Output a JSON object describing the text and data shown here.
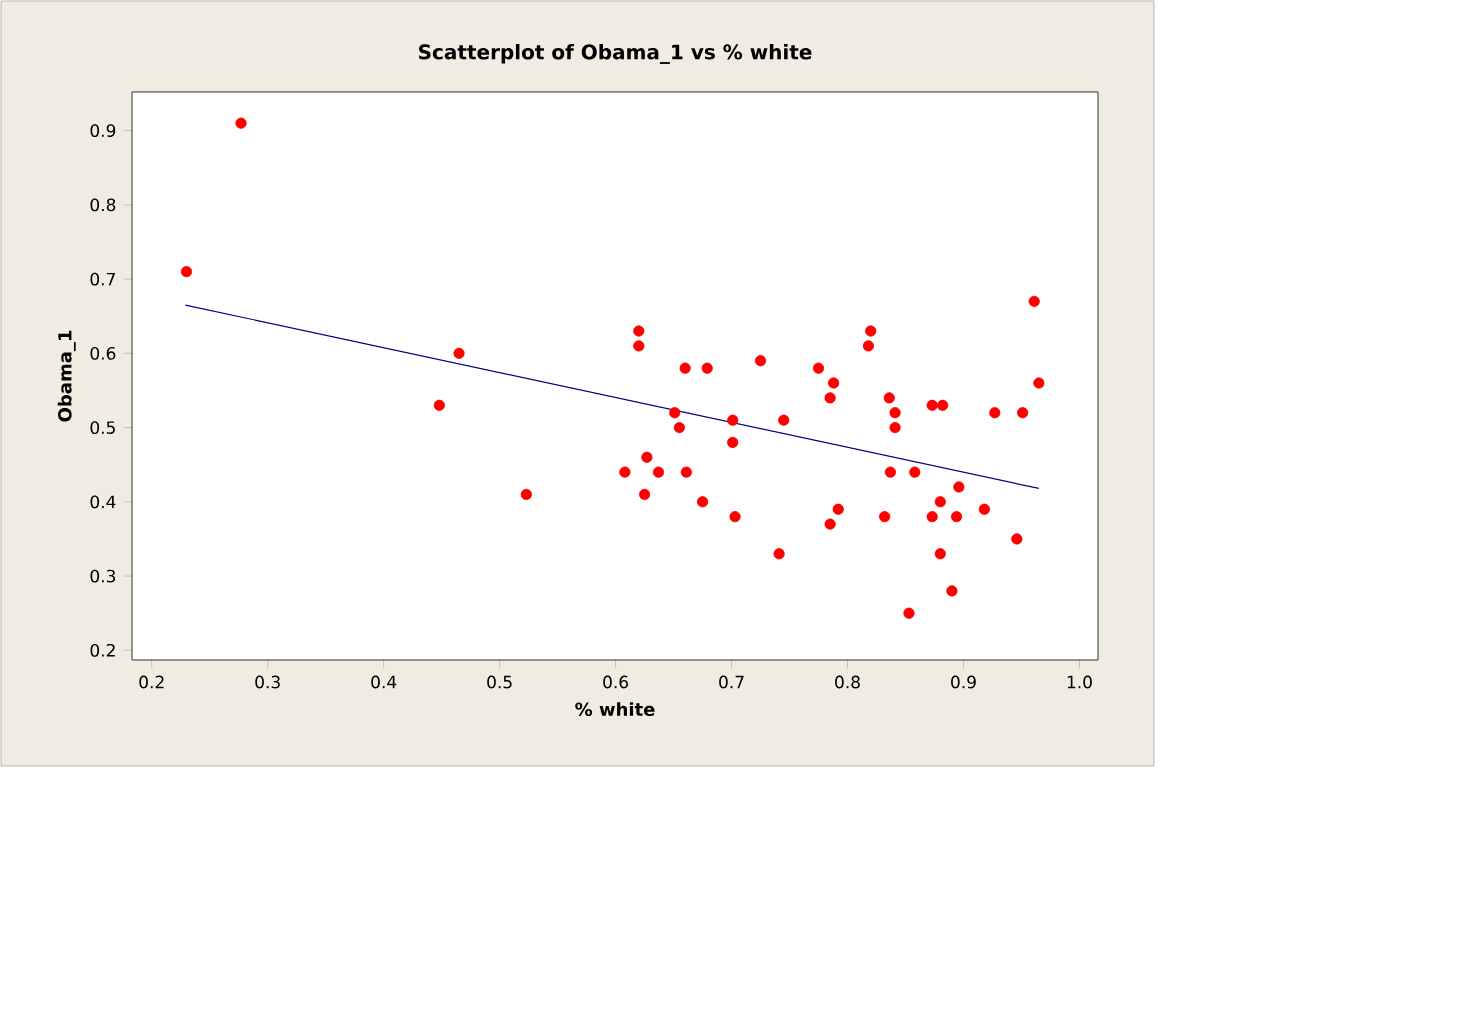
{
  "chart_data": {
    "type": "scatter",
    "title": "Scatterplot of Obama_1 vs % white",
    "xlabel": "% white",
    "ylabel": "Obama_1",
    "xlim": [
      0.183,
      1.016
    ],
    "ylim": [
      0.187,
      0.952
    ],
    "xticks": [
      0.2,
      0.3,
      0.4,
      0.5,
      0.6,
      0.7,
      0.8,
      0.9,
      {
        "value": 1.0,
        "label": "1.0"
      }
    ],
    "yticks": [
      0.2,
      0.3,
      0.4,
      0.5,
      0.6,
      0.7,
      0.8,
      0.9
    ],
    "grid": false,
    "series": [
      {
        "color": "#ff0000",
        "marker": "circle",
        "x": [
          0.23,
          0.277,
          0.448,
          0.465,
          0.523,
          0.62,
          0.62,
          0.66,
          0.679,
          0.725,
          0.775,
          0.788,
          0.785,
          0.82,
          0.818,
          0.836,
          0.841,
          0.841,
          0.873,
          0.882,
          0.927,
          0.951,
          0.961,
          0.965,
          0.651,
          0.655,
          0.701,
          0.701,
          0.745,
          0.627,
          0.608,
          0.637,
          0.661,
          0.625,
          0.675,
          0.703,
          0.741,
          0.792,
          0.785,
          0.832,
          0.837,
          0.858,
          0.88,
          0.873,
          0.896,
          0.894,
          0.918,
          0.88,
          0.89,
          0.853,
          0.946
        ],
        "values": [
          0.71,
          0.91,
          0.53,
          0.6,
          0.41,
          0.63,
          0.61,
          0.58,
          0.58,
          0.59,
          0.58,
          0.56,
          0.54,
          0.63,
          0.61,
          0.54,
          0.52,
          0.5,
          0.53,
          0.53,
          0.52,
          0.52,
          0.67,
          0.56,
          0.52,
          0.5,
          0.51,
          0.48,
          0.51,
          0.46,
          0.44,
          0.44,
          0.44,
          0.41,
          0.4,
          0.38,
          0.33,
          0.39,
          0.37,
          0.38,
          0.44,
          0.44,
          0.4,
          0.38,
          0.42,
          0.38,
          0.39,
          0.33,
          0.28,
          0.25,
          0.35
        ]
      },
      {
        "type": "line",
        "marker": "none",
        "color": "#000080",
        "x": [
          0.229,
          0.965
        ],
        "values": [
          0.665,
          0.418
        ]
      }
    ]
  }
}
